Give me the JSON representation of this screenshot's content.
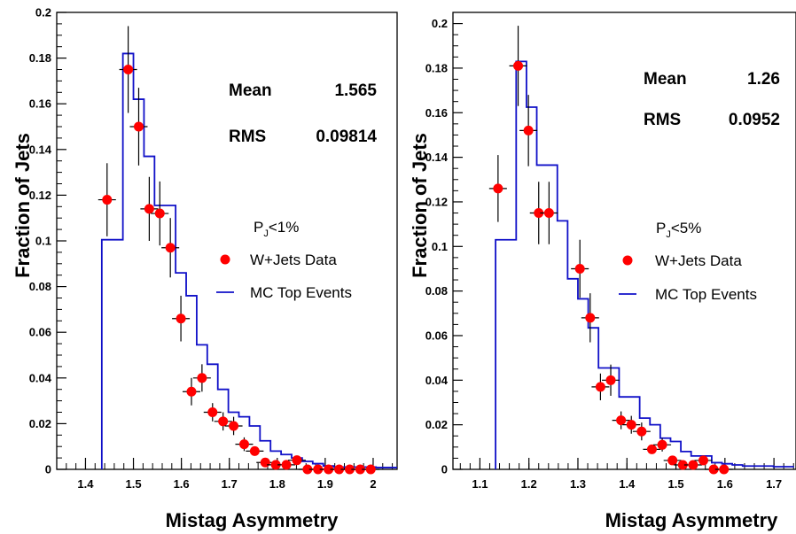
{
  "chart_data": [
    {
      "type": "histogram",
      "xlabel": "Mistag Asymmetry",
      "ylabel": "Fraction of Jets",
      "xlim": [
        1.34,
        2.05
      ],
      "ylim": [
        0,
        0.2
      ],
      "x_ticks": [
        "1.4",
        "1.5",
        "1.6",
        "1.7",
        "1.8",
        "1.9",
        "2"
      ],
      "y_ticks": [
        "0",
        "0.02",
        "0.04",
        "0.06",
        "0.08",
        "0.1",
        "0.12",
        "0.14",
        "0.16",
        "0.18",
        "0.2"
      ],
      "stats": {
        "mean_label": "Mean",
        "mean_value": "1.565",
        "rms_label": "RMS",
        "rms_value": "0.09814"
      },
      "legend": {
        "cut_main": "P",
        "cut_sub": "J",
        "cut_rest": "<1%",
        "data_label": "W+Jets Data",
        "mc_label": "MC Top Events"
      },
      "mc_series": {
        "name": "MC Top Events",
        "bin_width": 0.022,
        "bin_starts": [
          1.434,
          1.456,
          1.478,
          1.5,
          1.522,
          1.544,
          1.566,
          1.588,
          1.61,
          1.632,
          1.654,
          1.676,
          1.698,
          1.72,
          1.742,
          1.764,
          1.786,
          1.808,
          1.83,
          1.852,
          1.874,
          1.896,
          1.918,
          1.94,
          1.962,
          1.984,
          2.006,
          2.028
        ],
        "values": [
          0.1005,
          0.1005,
          0.182,
          0.162,
          0.137,
          0.1155,
          0.1155,
          0.086,
          0.076,
          0.0545,
          0.046,
          0.035,
          0.025,
          0.023,
          0.019,
          0.0125,
          0.008,
          0.0065,
          0.005,
          0.0035,
          0.0025,
          0.0015,
          0.001,
          0.001,
          0.001,
          0.001,
          0.0008,
          0.0008
        ]
      },
      "data_series": {
        "name": "W+Jets Data",
        "x": [
          1.445,
          1.489,
          1.511,
          1.533,
          1.555,
          1.577,
          1.599,
          1.621,
          1.643,
          1.665,
          1.687,
          1.709,
          1.731,
          1.753,
          1.775,
          1.797,
          1.819,
          1.841,
          1.863,
          1.885,
          1.907,
          1.929,
          1.951,
          1.973,
          1.995
        ],
        "y": [
          0.118,
          0.175,
          0.15,
          0.114,
          0.112,
          0.097,
          0.066,
          0.034,
          0.04,
          0.025,
          0.021,
          0.019,
          0.011,
          0.008,
          0.003,
          0.002,
          0.002,
          0.004,
          0.0,
          0.0,
          0.0,
          0.0,
          0.0,
          0.0,
          0.0
        ],
        "err": [
          0.016,
          0.019,
          0.017,
          0.014,
          0.014,
          0.013,
          0.01,
          0.006,
          0.006,
          0.004,
          0.004,
          0.004,
          0.003,
          0.002,
          0.001,
          0.001,
          0.001,
          0.0015,
          0,
          0,
          0,
          0,
          0,
          0,
          0
        ]
      }
    },
    {
      "type": "histogram",
      "xlabel": "Mistag Asymmetry",
      "ylabel": "Fraction of Jets",
      "xlim": [
        1.045,
        1.745
      ],
      "ylim": [
        0,
        0.205
      ],
      "x_ticks": [
        "1.1",
        "1.2",
        "1.3",
        "1.4",
        "1.5",
        "1.6",
        "1.7"
      ],
      "y_ticks": [
        "0",
        "0.02",
        "0.04",
        "0.06",
        "0.08",
        "0.1",
        "0.12",
        "0.14",
        "0.16",
        "0.18",
        "0.2"
      ],
      "stats": {
        "mean_label": "Mean",
        "mean_value": "1.26",
        "rms_label": "RMS",
        "rms_value": "0.0952"
      },
      "legend": {
        "cut_main": "P",
        "cut_sub": "J",
        "cut_rest": "<5%",
        "data_label": "W+Jets Data",
        "mc_label": "MC Top Events"
      },
      "mc_series": {
        "name": "MC Top Events",
        "bin_width": 0.021,
        "bin_starts": [
          1.132,
          1.153,
          1.174,
          1.195,
          1.216,
          1.237,
          1.258,
          1.279,
          1.3,
          1.321,
          1.342,
          1.363,
          1.384,
          1.405,
          1.426,
          1.447,
          1.468,
          1.489,
          1.51,
          1.531,
          1.552,
          1.573,
          1.594,
          1.615,
          1.636,
          1.657,
          1.678,
          1.699,
          1.72
        ],
        "values": [
          0.103,
          0.103,
          0.183,
          0.1625,
          0.1365,
          0.1365,
          0.1115,
          0.0855,
          0.0765,
          0.0635,
          0.0455,
          0.0455,
          0.0325,
          0.0325,
          0.023,
          0.02,
          0.014,
          0.0125,
          0.008,
          0.006,
          0.006,
          0.003,
          0.0025,
          0.002,
          0.0015,
          0.0015,
          0.0015,
          0.0012,
          0.0012
        ]
      },
      "data_series": {
        "name": "W+Jets Data",
        "x": [
          1.137,
          1.178,
          1.199,
          1.22,
          1.241,
          1.304,
          1.325,
          1.346,
          1.367,
          1.388,
          1.409,
          1.43,
          1.451,
          1.472,
          1.493,
          1.514,
          1.535,
          1.556,
          1.577,
          1.598
        ],
        "y": [
          0.126,
          0.181,
          0.152,
          0.115,
          0.115,
          0.09,
          0.068,
          0.037,
          0.04,
          0.022,
          0.02,
          0.017,
          0.009,
          0.011,
          0.004,
          0.002,
          0.002,
          0.004,
          0,
          0
        ],
        "err": [
          0.015,
          0.018,
          0.016,
          0.014,
          0.014,
          0.013,
          0.011,
          0.006,
          0.007,
          0.004,
          0.004,
          0.004,
          0.002,
          0.003,
          0.001,
          0.001,
          0.001,
          0.0015,
          0,
          0
        ]
      }
    }
  ],
  "colors": {
    "mc_line": "#1010c8",
    "data_marker": "#ff0000",
    "axis": "#000000"
  }
}
